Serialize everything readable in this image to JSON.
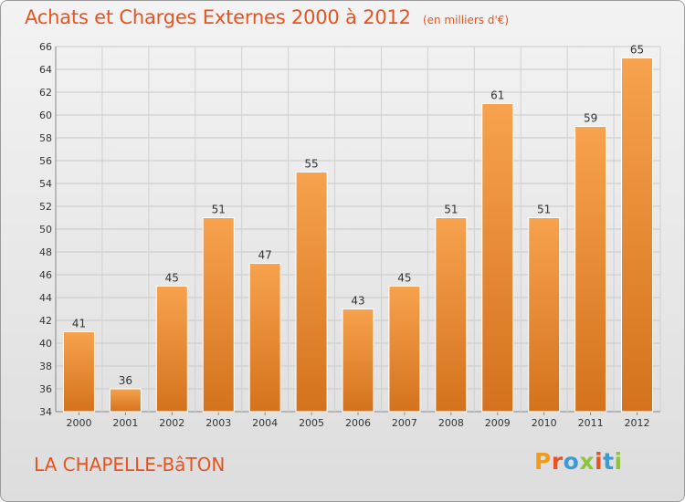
{
  "header": {
    "title": "Achats et Charges Externes 2000 à 2012",
    "subtitle": "(en milliers d'€)"
  },
  "footer": {
    "place": "LA CHAPELLE-BâTON",
    "brand": "Proxiti"
  },
  "colors": {
    "accent": "#e8531f",
    "bar_light": "#f7a24e",
    "bar_dark": "#d4721d",
    "brand_letters": [
      "#f39a16",
      "#e8531f",
      "#3e9ad6",
      "#8cc63f",
      "#e8531f",
      "#3e9ad6",
      "#8cc63f"
    ]
  },
  "chart_data": {
    "type": "bar",
    "title": "Achats et Charges Externes 2000 à 2012",
    "subtitle": "(en milliers d'€)",
    "xlabel": "",
    "ylabel": "",
    "categories": [
      "2000",
      "2001",
      "2002",
      "2003",
      "2004",
      "2005",
      "2006",
      "2007",
      "2008",
      "2009",
      "2010",
      "2011",
      "2012"
    ],
    "values": [
      41,
      36,
      45,
      51,
      47,
      55,
      43,
      45,
      51,
      61,
      51,
      59,
      65
    ],
    "ylim": [
      34,
      66
    ],
    "yticks": [
      34,
      36,
      38,
      40,
      42,
      44,
      46,
      48,
      50,
      52,
      54,
      56,
      58,
      60,
      62,
      64,
      66
    ],
    "grid": true,
    "legend": "none"
  }
}
